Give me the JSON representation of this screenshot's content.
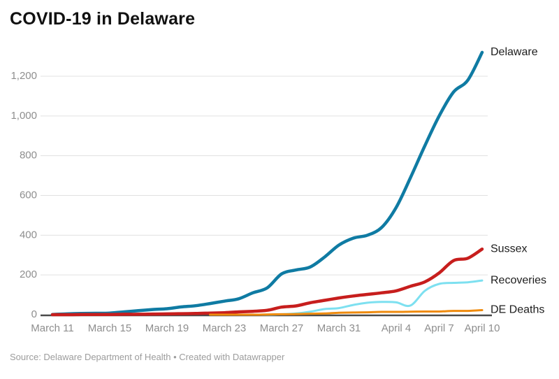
{
  "header": {
    "title": "COVID-19 in Delaware"
  },
  "footer": {
    "source_line": "Source: Delaware Department of Health • Created with Datawrapper"
  },
  "colors": {
    "background": "#ffffff",
    "grid": "#e0e0e0",
    "axis": "#4a4a4a",
    "tick_text": "#8e8e8e",
    "series_label_text": "#1d1d1d",
    "title_text": "#111111",
    "footer_text": "#9c9c9c"
  },
  "chart_data": {
    "type": "line",
    "title": "COVID-19 in Delaware",
    "xlabel": "",
    "ylabel": "",
    "ylim": [
      0,
      1326
    ],
    "grid": "horizontal",
    "legend_position": "labels-at-line-ends-right",
    "x": [
      "March 11",
      "March 12",
      "March 13",
      "March 14",
      "March 15",
      "March 16",
      "March 17",
      "March 18",
      "March 19",
      "March 20",
      "March 21",
      "March 22",
      "March 23",
      "March 24",
      "March 25",
      "March 26",
      "March 27",
      "March 28",
      "March 29",
      "March 30",
      "March 31",
      "April 1",
      "April 2",
      "April 3",
      "April 4",
      "April 5",
      "April 6",
      "April 7",
      "April 8",
      "April 9",
      "April 10"
    ],
    "x_ticks": [
      {
        "label": "March 11",
        "index": 0
      },
      {
        "label": "March 15",
        "index": 4
      },
      {
        "label": "March 19",
        "index": 8
      },
      {
        "label": "March 23",
        "index": 12
      },
      {
        "label": "March 27",
        "index": 16
      },
      {
        "label": "March 31",
        "index": 20
      },
      {
        "label": "April 4",
        "index": 24
      },
      {
        "label": "April 7",
        "index": 27
      },
      {
        "label": "April 10",
        "index": 30
      }
    ],
    "y_ticks": [
      {
        "value": 0,
        "label": "0"
      },
      {
        "value": 200,
        "label": "200"
      },
      {
        "value": 400,
        "label": "400"
      },
      {
        "value": 600,
        "label": "600"
      },
      {
        "value": 800,
        "label": "800"
      },
      {
        "value": 1000,
        "label": "1,000"
      },
      {
        "value": 1200,
        "label": "1,200"
      }
    ],
    "series": [
      {
        "name": "Delaware",
        "color": "#0f7ba3",
        "stroke_width": 4.5,
        "values": [
          1,
          4,
          6,
          7,
          8,
          14,
          20,
          26,
          30,
          39,
          45,
          56,
          68,
          80,
          110,
          135,
          205,
          225,
          240,
          290,
          350,
          385,
          400,
          440,
          540,
          690,
          850,
          1000,
          1120,
          1180,
          1320
        ]
      },
      {
        "name": "Sussex",
        "color": "#c71e1d",
        "stroke_width": 4.5,
        "values": [
          0,
          0,
          1,
          1,
          1,
          2,
          2,
          3,
          4,
          5,
          6,
          8,
          10,
          14,
          17,
          22,
          38,
          44,
          60,
          72,
          84,
          94,
          102,
          110,
          120,
          143,
          165,
          210,
          272,
          284,
          330
        ]
      },
      {
        "name": "Recoveries",
        "color": "#7de0f0",
        "stroke_width": 3,
        "values": [
          null,
          null,
          null,
          null,
          null,
          null,
          null,
          null,
          null,
          null,
          null,
          null,
          null,
          null,
          0,
          0,
          2,
          6,
          15,
          28,
          33,
          49,
          60,
          64,
          62,
          46,
          120,
          155,
          160,
          163,
          172
        ]
      },
      {
        "name": "DE Deaths",
        "color": "#ef8b0e",
        "stroke_width": 3,
        "values": [
          null,
          null,
          null,
          null,
          null,
          null,
          null,
          null,
          null,
          null,
          null,
          0,
          0,
          0,
          0,
          1,
          2,
          3,
          5,
          6,
          10,
          11,
          12,
          14,
          14,
          15,
          16,
          16,
          19,
          19,
          23
        ]
      }
    ]
  }
}
